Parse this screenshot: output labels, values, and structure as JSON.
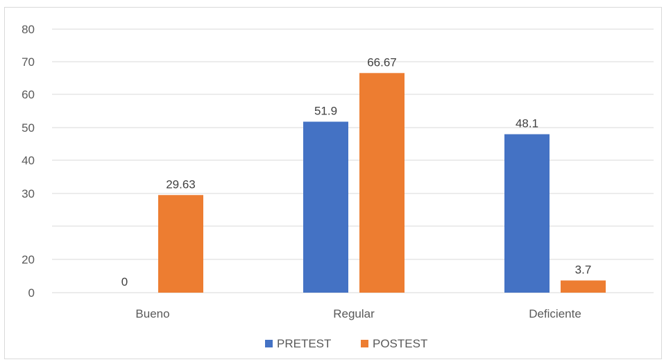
{
  "chart_data": {
    "type": "bar",
    "categories": [
      "Bueno",
      "Regular",
      "Deficiente"
    ],
    "series": [
      {
        "name": "PRETEST",
        "color": "#4472c4",
        "values": [
          0,
          51.9,
          48.1
        ],
        "labels": [
          "0",
          "51.9",
          "48.1"
        ]
      },
      {
        "name": "POSTEST",
        "color": "#ed7d31",
        "values": [
          29.63,
          66.67,
          3.7
        ],
        "labels": [
          "29.63",
          "66.67",
          "3.7"
        ]
      }
    ],
    "y_tick_labels": [
      "0",
      "20",
      "",
      "30",
      "40",
      "50",
      "60",
      "70",
      "80"
    ],
    "ylim": [
      0,
      80
    ],
    "grid": true,
    "legend": "bottom"
  }
}
